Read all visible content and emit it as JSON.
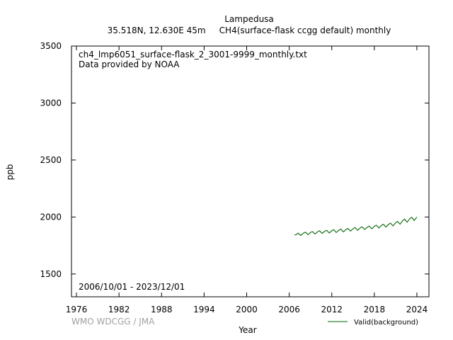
{
  "header": {
    "station": "Lampedusa",
    "subtitle": "35.518N, 12.630E 45m     CH4(surface-flask ccgg default) monthly"
  },
  "plot": {
    "file_label": "ch4_lmp6051_surface-flask_2_3001-9999_monthly.txt",
    "provider_label": "Data provided by NOAA",
    "date_range_label": "2006/10/01 - 2023/12/01",
    "credit": "WMO WDCGG / JMA"
  },
  "chart_data": {
    "type": "line",
    "xlabel": "Year",
    "ylabel": "ppb",
    "xlim": [
      1975.3,
      2025.7
    ],
    "ylim": [
      1300,
      3500
    ],
    "x_ticks": [
      1976,
      1982,
      1988,
      1994,
      2000,
      2006,
      2012,
      2018,
      2024
    ],
    "y_ticks": [
      1500,
      2000,
      2500,
      3000,
      3500
    ],
    "legend_position": "bottom-right",
    "series": [
      {
        "name": "Valid(background)",
        "color": "#006400",
        "points": [
          [
            2006.79,
            1842
          ],
          [
            2006.96,
            1845
          ],
          [
            2007.13,
            1852
          ],
          [
            2007.29,
            1858
          ],
          [
            2007.46,
            1848
          ],
          [
            2007.63,
            1838
          ],
          [
            2007.79,
            1846
          ],
          [
            2007.96,
            1856
          ],
          [
            2008.13,
            1863
          ],
          [
            2008.29,
            1867
          ],
          [
            2008.46,
            1857
          ],
          [
            2008.63,
            1846
          ],
          [
            2008.79,
            1852
          ],
          [
            2008.96,
            1862
          ],
          [
            2009.13,
            1869
          ],
          [
            2009.29,
            1872
          ],
          [
            2009.46,
            1862
          ],
          [
            2009.63,
            1851
          ],
          [
            2009.79,
            1859
          ],
          [
            2009.96,
            1868
          ],
          [
            2010.13,
            1875
          ],
          [
            2010.29,
            1879
          ],
          [
            2010.46,
            1868
          ],
          [
            2010.63,
            1856
          ],
          [
            2010.79,
            1864
          ],
          [
            2010.96,
            1873
          ],
          [
            2011.13,
            1879
          ],
          [
            2011.29,
            1883
          ],
          [
            2011.46,
            1872
          ],
          [
            2011.63,
            1860
          ],
          [
            2011.79,
            1867
          ],
          [
            2011.96,
            1877
          ],
          [
            2012.13,
            1884
          ],
          [
            2012.29,
            1888
          ],
          [
            2012.46,
            1876
          ],
          [
            2012.63,
            1865
          ],
          [
            2012.79,
            1872
          ],
          [
            2012.96,
            1882
          ],
          [
            2013.13,
            1889
          ],
          [
            2013.29,
            1893
          ],
          [
            2013.46,
            1881
          ],
          [
            2013.63,
            1870
          ],
          [
            2013.79,
            1878
          ],
          [
            2013.96,
            1888
          ],
          [
            2014.13,
            1896
          ],
          [
            2014.29,
            1899
          ],
          [
            2014.46,
            1888
          ],
          [
            2014.63,
            1877
          ],
          [
            2014.79,
            1885
          ],
          [
            2014.96,
            1895
          ],
          [
            2015.13,
            1903
          ],
          [
            2015.29,
            1907
          ],
          [
            2015.46,
            1896
          ],
          [
            2015.63,
            1884
          ],
          [
            2015.79,
            1892
          ],
          [
            2015.96,
            1902
          ],
          [
            2016.13,
            1909
          ],
          [
            2016.29,
            1913
          ],
          [
            2016.46,
            1902
          ],
          [
            2016.63,
            1891
          ],
          [
            2016.79,
            1898
          ],
          [
            2016.96,
            1908
          ],
          [
            2017.13,
            1916
          ],
          [
            2017.29,
            1920
          ],
          [
            2017.46,
            1908
          ],
          [
            2017.63,
            1897
          ],
          [
            2017.79,
            1905
          ],
          [
            2017.96,
            1915
          ],
          [
            2018.13,
            1923
          ],
          [
            2018.29,
            1927
          ],
          [
            2018.46,
            1915
          ],
          [
            2018.63,
            1904
          ],
          [
            2018.79,
            1913
          ],
          [
            2018.96,
            1924
          ],
          [
            2019.13,
            1932
          ],
          [
            2019.29,
            1936
          ],
          [
            2019.46,
            1924
          ],
          [
            2019.63,
            1913
          ],
          [
            2019.79,
            1921
          ],
          [
            2019.96,
            1933
          ],
          [
            2020.13,
            1941
          ],
          [
            2020.29,
            1946
          ],
          [
            2020.46,
            1934
          ],
          [
            2020.63,
            1923
          ],
          [
            2020.79,
            1933
          ],
          [
            2020.96,
            1946
          ],
          [
            2021.13,
            1956
          ],
          [
            2021.29,
            1961
          ],
          [
            2021.46,
            1948
          ],
          [
            2021.63,
            1937
          ],
          [
            2021.79,
            1950
          ],
          [
            2021.96,
            1964
          ],
          [
            2022.13,
            1975
          ],
          [
            2022.29,
            1981
          ],
          [
            2022.46,
            1966
          ],
          [
            2022.63,
            1955
          ],
          [
            2022.79,
            1968
          ],
          [
            2022.96,
            1982
          ],
          [
            2023.13,
            1992
          ],
          [
            2023.29,
            1997
          ],
          [
            2023.46,
            1981
          ],
          [
            2023.63,
            1970
          ],
          [
            2023.79,
            1984
          ],
          [
            2023.96,
            1996
          ]
        ]
      }
    ]
  }
}
